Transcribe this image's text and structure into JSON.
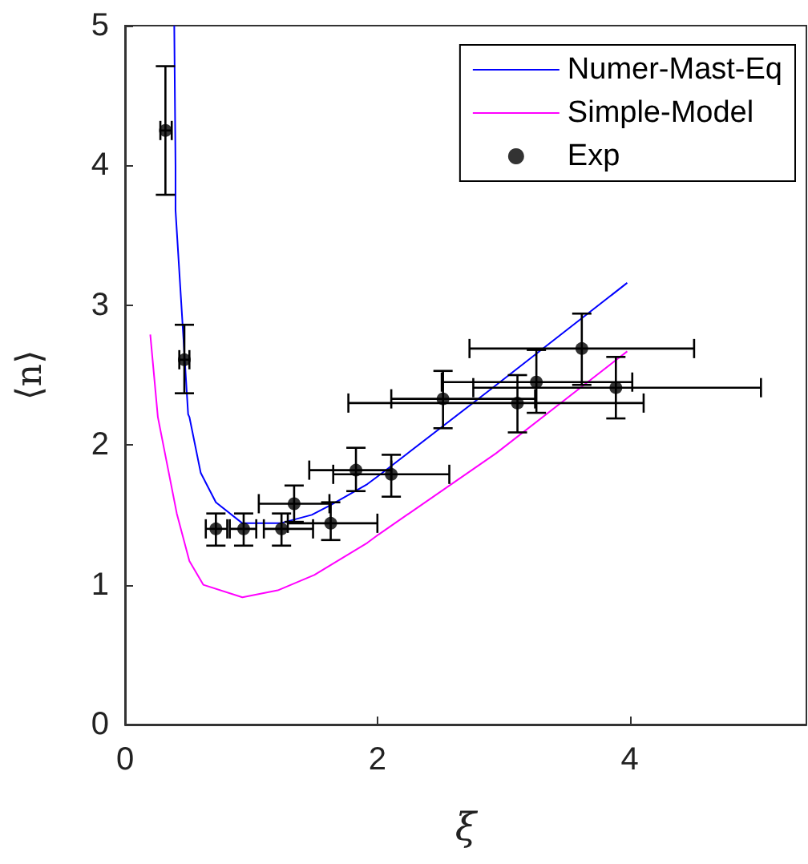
{
  "chart_data": {
    "type": "line",
    "xlabel": "ξ",
    "ylabel": "⟨n⟩",
    "xlim": [
      0,
      5.4
    ],
    "xticks": [
      0,
      2,
      4
    ],
    "ylim": [
      0,
      5
    ],
    "yticks": [
      0,
      1,
      2,
      3,
      4,
      5
    ],
    "grid": false,
    "legend": "top right",
    "series": [
      {
        "name": "Numer-Mast-Eq",
        "color": "#0000ff",
        "x": [
          0.39,
          0.4,
          0.4,
          0.5,
          0.51,
          0.6,
          0.72,
          0.93,
          1.23,
          1.48,
          1.63,
          1.92,
          2.01,
          2.9,
          3.98
        ],
        "values": [
          5.0,
          4.0,
          3.68,
          2.22,
          2.2,
          1.8,
          1.59,
          1.44,
          1.44,
          1.5,
          1.57,
          1.72,
          1.78,
          2.4,
          3.16
        ]
      },
      {
        "name": "Simple-Model",
        "color": "#ff00ff",
        "x": [
          0.2,
          0.26,
          0.41,
          0.51,
          0.62,
          0.93,
          1.21,
          1.5,
          1.92,
          2.01,
          2.94,
          3.98
        ],
        "values": [
          2.79,
          2.2,
          1.51,
          1.17,
          1.0,
          0.91,
          0.96,
          1.07,
          1.3,
          1.36,
          1.94,
          2.67
        ]
      },
      {
        "name": "Exp",
        "type": "scatter",
        "color": "#000000",
        "marker": "circle",
        "x": [
          0.32,
          0.47,
          0.72,
          0.94,
          1.24,
          1.34,
          1.63,
          1.83,
          2.11,
          2.52,
          3.11,
          3.26,
          3.62,
          3.89
        ],
        "values": [
          4.25,
          2.61,
          1.4,
          1.4,
          1.4,
          1.58,
          1.44,
          1.82,
          1.79,
          2.33,
          2.3,
          2.45,
          2.69,
          2.41
        ],
        "errors": [
          [
            3.79,
            4.71
          ],
          [
            2.37,
            2.86
          ],
          [
            1.28,
            1.51
          ],
          [
            1.28,
            1.51
          ],
          [
            1.28,
            1.51
          ],
          [
            1.45,
            1.71
          ],
          [
            1.32,
            1.59
          ],
          [
            1.67,
            1.98
          ],
          [
            1.63,
            1.93
          ],
          [
            2.12,
            2.53
          ],
          [
            2.09,
            2.5
          ],
          [
            2.23,
            2.68
          ],
          [
            2.43,
            2.94
          ],
          [
            2.19,
            2.63
          ]
        ],
        "xerrors": [
          [
            0.28,
            0.37
          ],
          [
            0.43,
            0.51
          ],
          [
            0.64,
            0.81
          ],
          [
            0.83,
            1.04
          ],
          [
            1.1,
            1.49
          ],
          [
            1.06,
            1.62
          ],
          [
            1.29,
            2.0
          ],
          [
            1.46,
            2.11
          ],
          [
            1.65,
            2.57
          ],
          [
            2.11,
            3.25
          ],
          [
            1.77,
            4.11
          ],
          [
            2.51,
            4.02
          ],
          [
            2.73,
            4.51
          ],
          [
            2.76,
            5.04
          ]
        ]
      }
    ]
  }
}
